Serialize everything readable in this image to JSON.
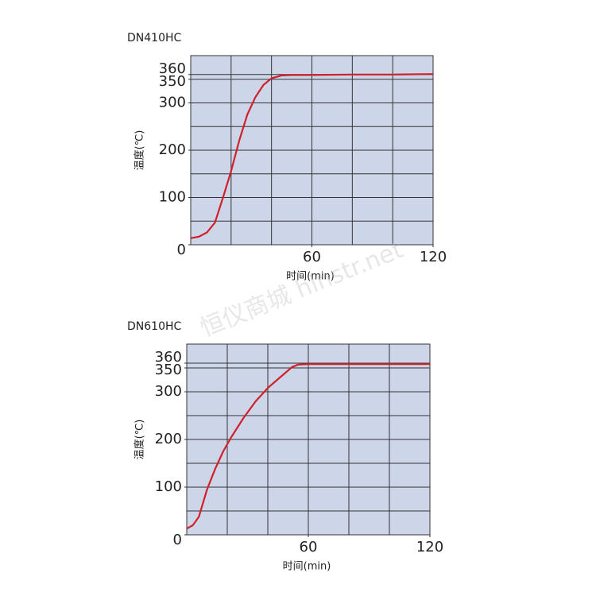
{
  "chart_data": [
    {
      "type": "line",
      "title": "DN410HC",
      "ylabel": "温度(℃)",
      "xlabel": "时间(min)",
      "x": [
        0,
        4,
        8,
        12,
        16,
        20,
        24,
        28,
        32,
        36,
        40,
        45,
        50,
        60,
        80,
        100,
        120
      ],
      "series": [
        {
          "name": "DN410HC",
          "color": "#d0202a",
          "values": [
            14,
            17,
            26,
            47,
            100,
            156,
            220,
            275,
            312,
            338,
            352,
            358,
            359,
            359,
            360,
            360,
            361
          ]
        }
      ],
      "xlim": [
        0,
        120
      ],
      "xticks": [
        60,
        120
      ],
      "ylim": [
        0,
        400
      ],
      "yticks": [
        0,
        100,
        200,
        300,
        350,
        360
      ],
      "xgrid": [
        20,
        40,
        60,
        80,
        100
      ],
      "ygrid": [
        50,
        100,
        150,
        200,
        250,
        300,
        350,
        360
      ],
      "plot_bg": "#cdd6e8"
    },
    {
      "type": "line",
      "title": "DN610HC",
      "ylabel": "温度(℃)",
      "xlabel": "时间(min)",
      "x": [
        0,
        3,
        6,
        10,
        14,
        18,
        22,
        28,
        34,
        40,
        46,
        52,
        55,
        60,
        80,
        100,
        120
      ],
      "series": [
        {
          "name": "DN610HC",
          "color": "#d0202a",
          "values": [
            13,
            20,
            38,
            95,
            138,
            175,
            205,
            245,
            280,
            308,
            330,
            352,
            357,
            358,
            358,
            358,
            358
          ]
        }
      ],
      "xlim": [
        0,
        120
      ],
      "xticks": [
        60,
        120
      ],
      "ylim": [
        0,
        400
      ],
      "yticks": [
        0,
        100,
        200,
        300,
        350,
        360
      ],
      "xgrid": [
        20,
        40,
        60,
        80,
        100
      ],
      "ygrid": [
        50,
        100,
        150,
        200,
        250,
        300,
        350,
        360
      ],
      "plot_bg": "#cdd6e8"
    }
  ],
  "watermark": "恒仪商城 hinstr.net"
}
